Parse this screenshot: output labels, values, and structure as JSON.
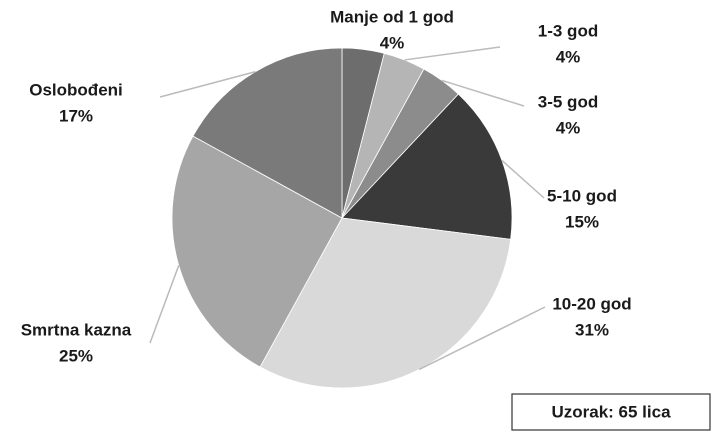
{
  "chart_data": {
    "type": "pie",
    "categories": [
      "Manje od 1 god",
      "1-3 god",
      "3-5 god",
      "5-10 god",
      "10-20 god",
      "Smrtna kazna",
      "Oslobođeni"
    ],
    "values": [
      4,
      4,
      4,
      15,
      31,
      25,
      17
    ],
    "value_labels": [
      "4%",
      "4%",
      "4%",
      "15%",
      "31%",
      "25%",
      "17%"
    ],
    "colors": [
      "#6d6d6d",
      "#b5b5b5",
      "#8c8c8c",
      "#3a3a3a",
      "#d9d9d9",
      "#a6a6a6",
      "#7a7a7a"
    ],
    "annotation": "Uzorak: 65 lica"
  }
}
